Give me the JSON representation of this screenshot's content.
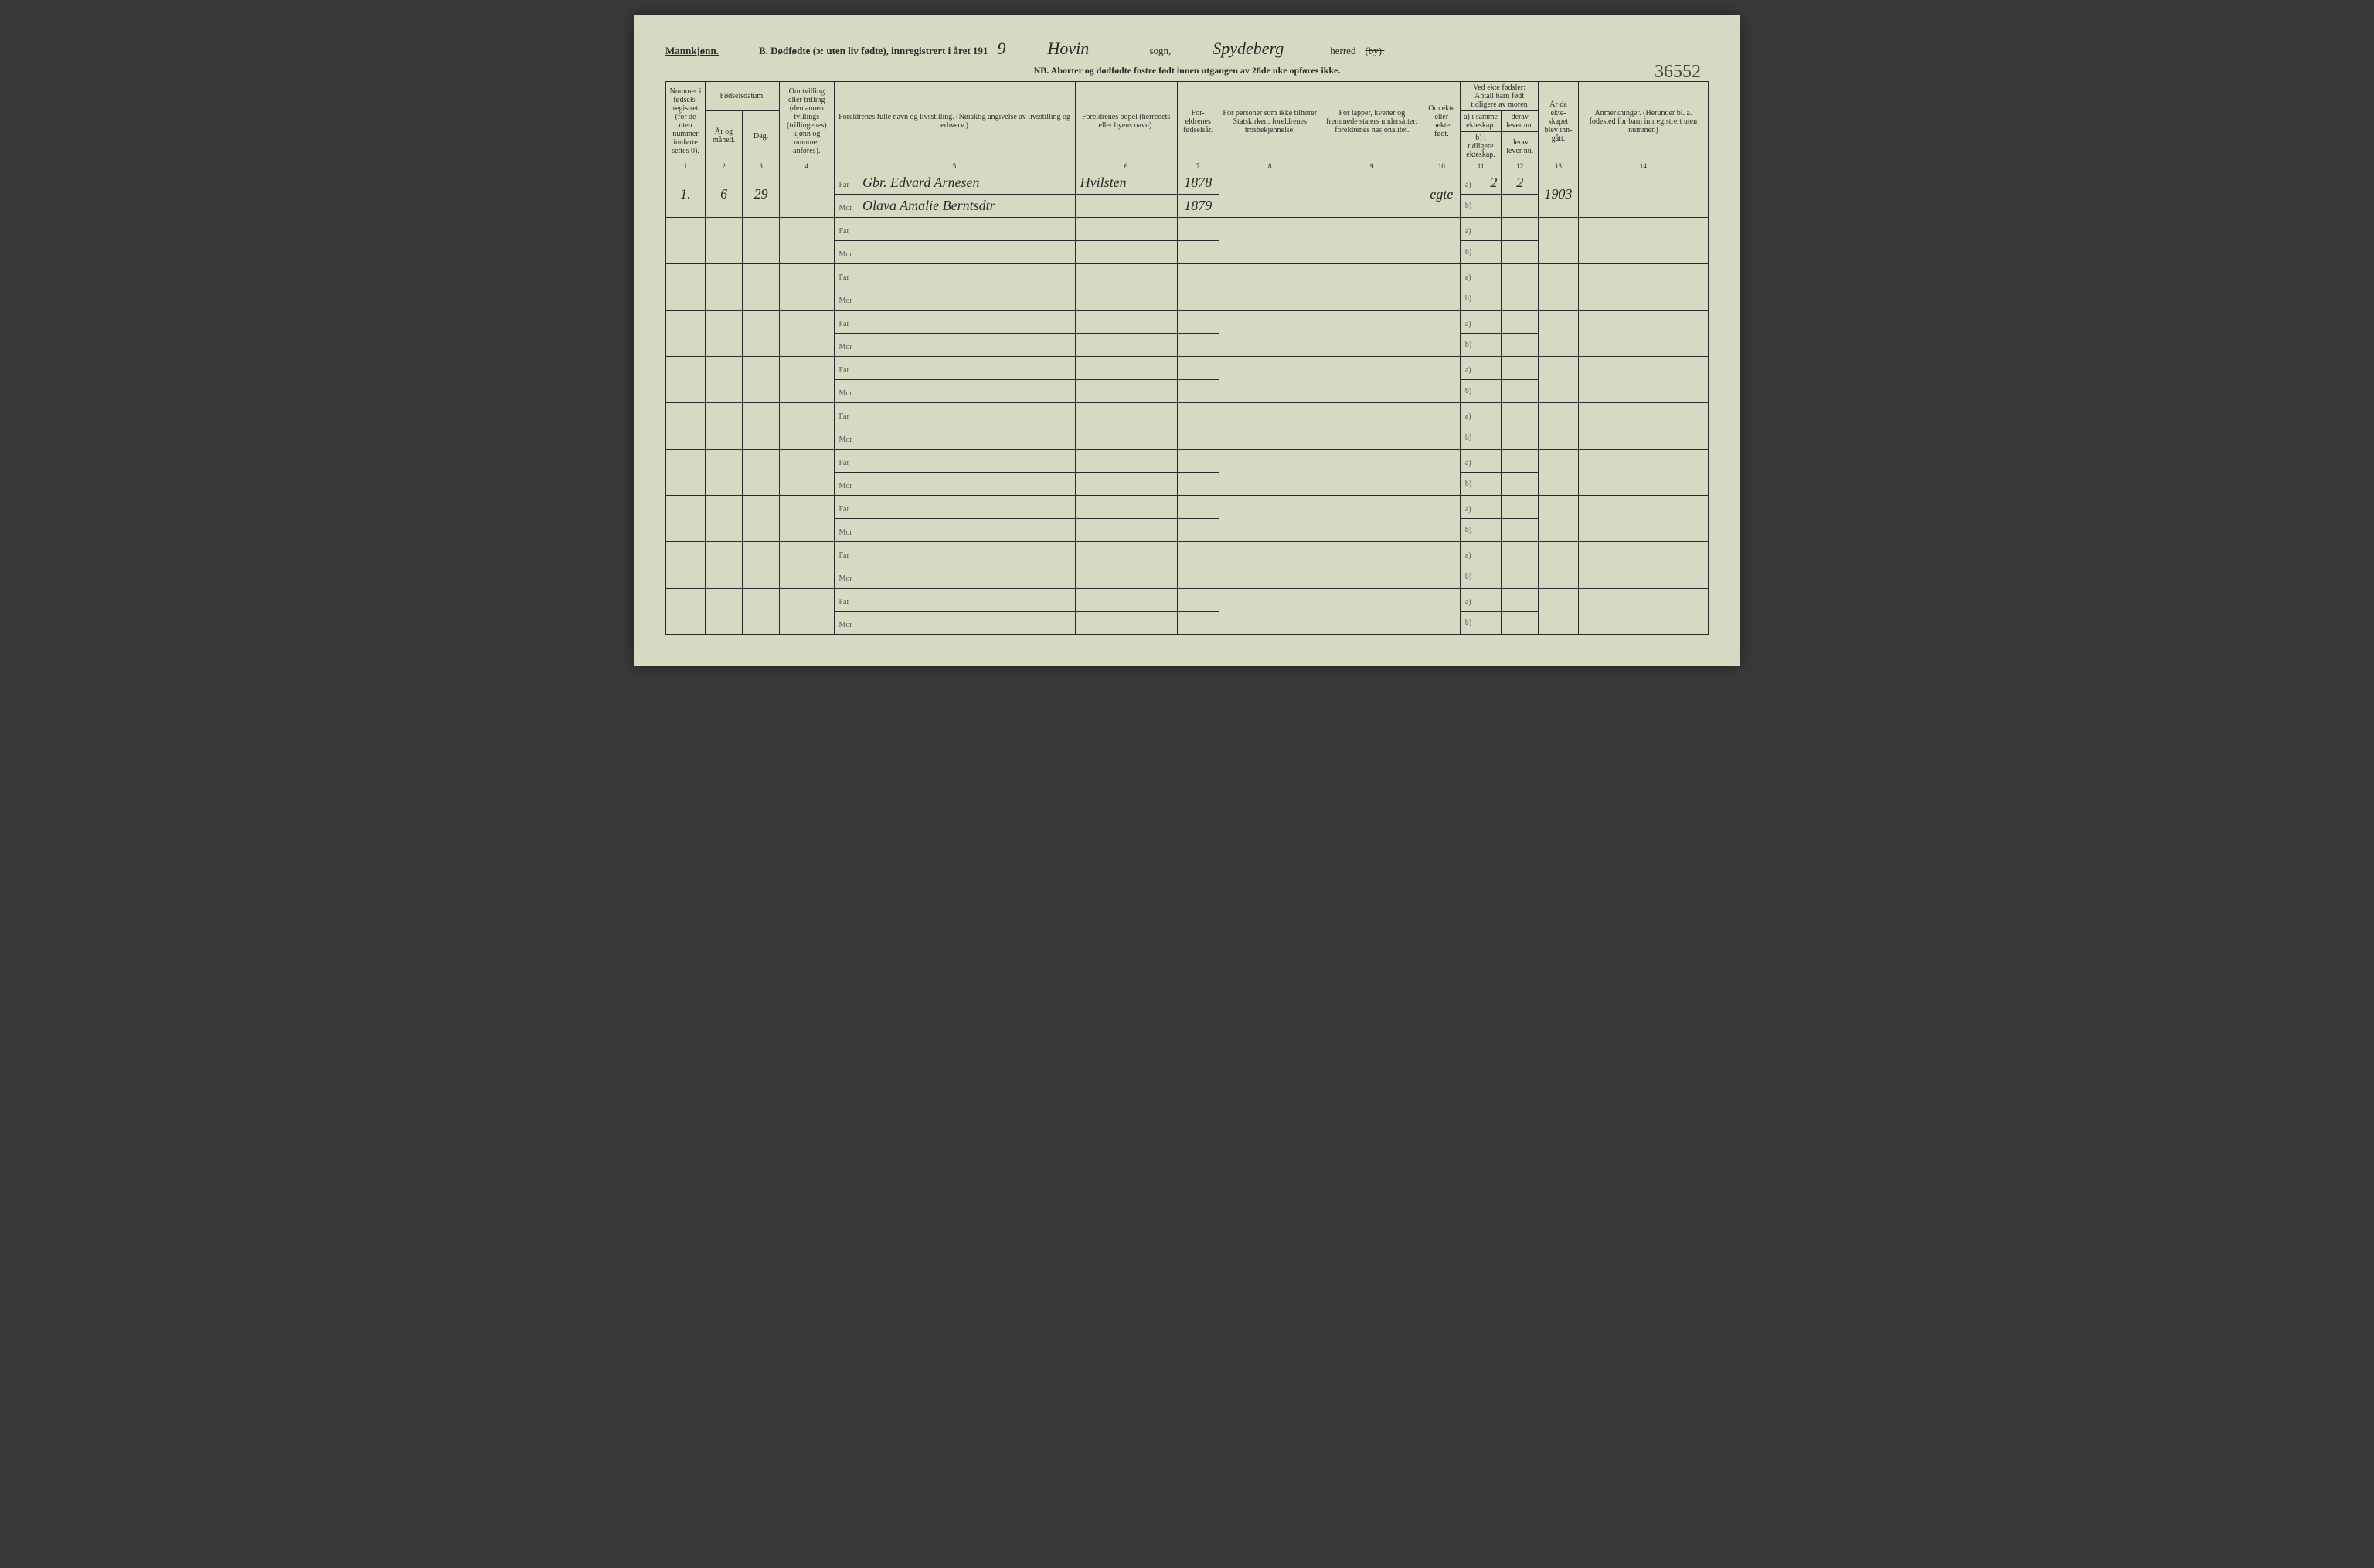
{
  "header": {
    "gender": "Mannkjønn.",
    "title_prefix": "B. Dødfødte (ɔ: uten liv fødte), innregistrert i året 191",
    "year_suffix": "9",
    "sogn_hw": "Hovin",
    "sogn_label": "sogn,",
    "herred_hw": "Spydeberg",
    "herred_label": "herred",
    "by_struck": "(by).",
    "corner_number": "36552",
    "nb": "NB. Aborter og dødfødte fostre født innen utgangen av 28de uke opføres ikke."
  },
  "columns": {
    "c1": "Nummer i fødsels-registret (for de uten nummer innførte settes 0).",
    "c_fd": "Fødselsdatum.",
    "c2": "År og måned.",
    "c3": "Dag.",
    "c4": "Om tvilling eller trilling (den annen tvillings (trillingenes) kjønn og nummer anføres).",
    "c5": "Foreldrenes fulle navn og livsstilling. (Nøiaktig angivelse av livsstilling og erhverv.)",
    "c6": "Foreldrenes bopel (herredets eller byens navn).",
    "c7": "For-eldrenes fødselsår.",
    "c8": "For personer som ikke tilhører Statskirken: foreldrenes trosbekjennelse.",
    "c9": "For lapper, kvener og fremmede staters undersåtter: foreldrenes nasjonalitet.",
    "c10": "Om ekte eller uekte født.",
    "c_ved": "Ved ekte fødsler: Antall barn født tidligere av moren",
    "c11a": "a) i samme ekteskap.",
    "c11b": "b) i tidligere ekteskap.",
    "c12a": "derav lever nu.",
    "c12b": "derav lever nu.",
    "c13": "År da ekte-skapet blev inn-gått.",
    "c14": "Anmerkninger. (Herunder bl. a. fødested for barn innregistrert uten nummer.)"
  },
  "colnums": [
    "1",
    "2",
    "3",
    "4",
    "5",
    "6",
    "7",
    "8",
    "9",
    "10",
    "11",
    "12",
    "13",
    "14"
  ],
  "labels": {
    "far": "Far",
    "mor": "Mor",
    "a": "a)",
    "b": "b)"
  },
  "entry1": {
    "num": "1.",
    "year_month": "6",
    "day": "29",
    "far_name": "Gbr. Edvard Arnesen",
    "mor_name": "Olava Amalie Berntsdtr",
    "bopel": "Hvilsten",
    "far_year": "1878",
    "mor_year": "1879",
    "ekte": "egte",
    "c11": "2",
    "c12": "2",
    "c13": "1903"
  }
}
